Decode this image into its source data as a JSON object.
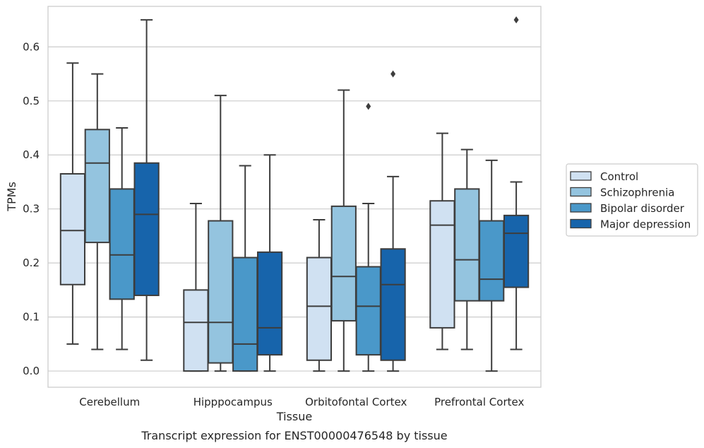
{
  "chart_data": {
    "type": "box",
    "xlabel": "Tissue",
    "ylabel": "TPMs",
    "caption": "Transcript expression for ENST00000476548 by tissue",
    "ylim": [
      -0.03,
      0.675
    ],
    "yticks": [
      "0.0",
      "0.1",
      "0.2",
      "0.3",
      "0.4",
      "0.5",
      "0.6"
    ],
    "categories": [
      "Cerebellum",
      "Hipppocampus",
      "Orbitofontal Cortex",
      "Prefrontal Cortex"
    ],
    "grid": "horizontal",
    "legend_position": "right",
    "series": [
      {
        "name": "Control",
        "color": "#d0e1f2",
        "boxes": [
          {
            "min": 0.05,
            "q1": 0.16,
            "median": 0.26,
            "q3": 0.365,
            "max": 0.57,
            "outliers": []
          },
          {
            "min": 0.0,
            "q1": 0.0,
            "median": 0.09,
            "q3": 0.15,
            "max": 0.31,
            "outliers": []
          },
          {
            "min": 0.0,
            "q1": 0.02,
            "median": 0.12,
            "q3": 0.21,
            "max": 0.28,
            "outliers": []
          },
          {
            "min": 0.04,
            "q1": 0.08,
            "median": 0.27,
            "q3": 0.315,
            "max": 0.44,
            "outliers": []
          }
        ]
      },
      {
        "name": "Schizophrenia",
        "color": "#94c4df",
        "boxes": [
          {
            "min": 0.04,
            "q1": 0.238,
            "median": 0.385,
            "q3": 0.447,
            "max": 0.55,
            "outliers": []
          },
          {
            "min": 0.0,
            "q1": 0.015,
            "median": 0.09,
            "q3": 0.278,
            "max": 0.51,
            "outliers": []
          },
          {
            "min": 0.0,
            "q1": 0.093,
            "median": 0.175,
            "q3": 0.305,
            "max": 0.52,
            "outliers": []
          },
          {
            "min": 0.04,
            "q1": 0.13,
            "median": 0.206,
            "q3": 0.337,
            "max": 0.41,
            "outliers": []
          }
        ]
      },
      {
        "name": "Bipolar disorder",
        "color": "#4a98c9",
        "boxes": [
          {
            "min": 0.04,
            "q1": 0.133,
            "median": 0.215,
            "q3": 0.337,
            "max": 0.45,
            "outliers": []
          },
          {
            "min": 0.0,
            "q1": 0.0,
            "median": 0.05,
            "q3": 0.21,
            "max": 0.38,
            "outliers": []
          },
          {
            "min": 0.0,
            "q1": 0.03,
            "median": 0.12,
            "q3": 0.193,
            "max": 0.31,
            "outliers": [
              0.49
            ]
          },
          {
            "min": 0.0,
            "q1": 0.13,
            "median": 0.17,
            "q3": 0.278,
            "max": 0.39,
            "outliers": []
          }
        ]
      },
      {
        "name": "Major depression",
        "color": "#1764ab",
        "boxes": [
          {
            "min": 0.02,
            "q1": 0.14,
            "median": 0.29,
            "q3": 0.385,
            "max": 0.65,
            "outliers": []
          },
          {
            "min": 0.0,
            "q1": 0.03,
            "median": 0.08,
            "q3": 0.22,
            "max": 0.4,
            "outliers": []
          },
          {
            "min": 0.0,
            "q1": 0.02,
            "median": 0.16,
            "q3": 0.226,
            "max": 0.36,
            "outliers": [
              0.55
            ]
          },
          {
            "min": 0.04,
            "q1": 0.155,
            "median": 0.255,
            "q3": 0.288,
            "max": 0.35,
            "outliers": [
              0.65
            ]
          }
        ]
      }
    ]
  }
}
